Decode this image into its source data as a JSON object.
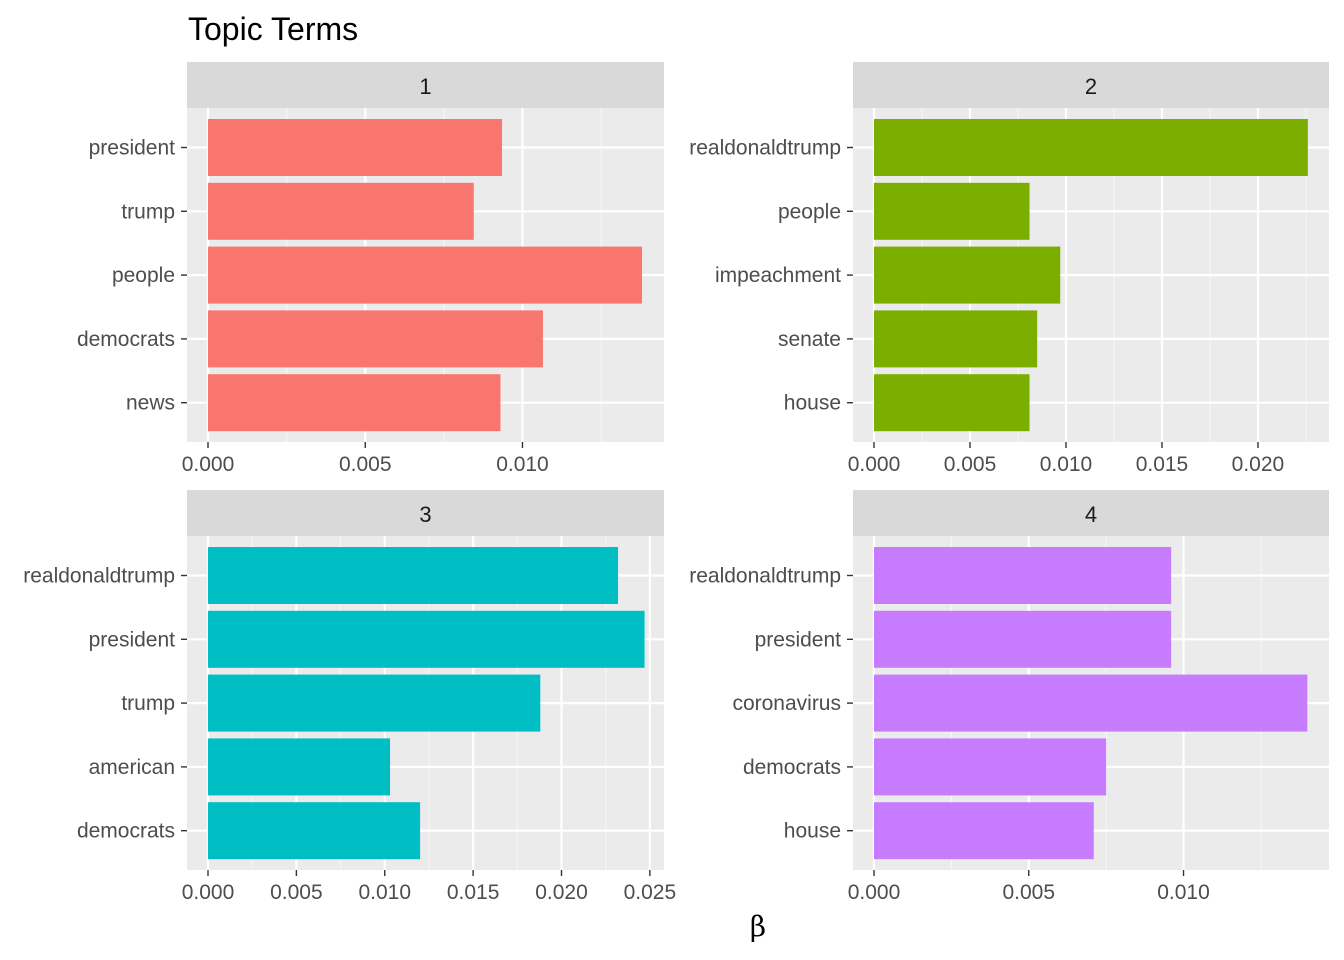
{
  "chart_data": {
    "type": "bar",
    "orientation": "horizontal",
    "title": "Topic Terms",
    "xlabel": "β",
    "ylabel": "",
    "grid": true,
    "legend": "none",
    "panels": [
      {
        "label": "1",
        "color": "#F8766D",
        "xlim": [
          0,
          0.0145
        ],
        "xticks": [
          "0.000",
          "0.005",
          "0.010"
        ],
        "xtick_values": [
          0,
          0.005,
          0.01
        ],
        "categories": [
          "president",
          "trump",
          "people",
          "democrats",
          "news"
        ],
        "values": [
          0.00935,
          0.00845,
          0.0138,
          0.01065,
          0.0093
        ]
      },
      {
        "label": "2",
        "color": "#7CAE00",
        "xlim": [
          0,
          0.0237
        ],
        "xticks": [
          "0.000",
          "0.005",
          "0.010",
          "0.015",
          "0.020"
        ],
        "xtick_values": [
          0,
          0.005,
          0.01,
          0.015,
          0.02
        ],
        "categories": [
          "realdonaldtrump",
          "people",
          "impeachment",
          "senate",
          "house"
        ],
        "values": [
          0.0226,
          0.0081,
          0.0097,
          0.0085,
          0.0081
        ]
      },
      {
        "label": "3",
        "color": "#00BFC4",
        "xlim": [
          0,
          0.0258
        ],
        "xticks": [
          "0.000",
          "0.005",
          "0.010",
          "0.015",
          "0.020",
          "0.025"
        ],
        "xtick_values": [
          0,
          0.005,
          0.01,
          0.015,
          0.02,
          0.025
        ],
        "categories": [
          "realdonaldtrump",
          "president",
          "trump",
          "american",
          "democrats"
        ],
        "values": [
          0.0232,
          0.0247,
          0.0188,
          0.0103,
          0.012
        ]
      },
      {
        "label": "4",
        "color": "#C77CFF",
        "xlim": [
          0,
          0.0147
        ],
        "xticks": [
          "0.000",
          "0.005",
          "0.010"
        ],
        "xtick_values": [
          0,
          0.005,
          0.01
        ],
        "categories": [
          "realdonaldtrump",
          "president",
          "coronavirus",
          "democrats",
          "house"
        ],
        "values": [
          0.0096,
          0.0096,
          0.014,
          0.0075,
          0.0071
        ]
      }
    ]
  }
}
